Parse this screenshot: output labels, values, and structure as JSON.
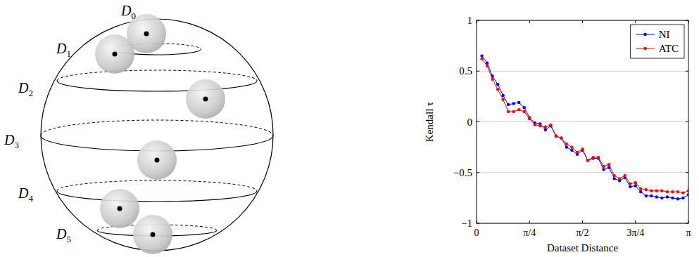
{
  "diagram": {
    "nodes": [
      {
        "symbol": "D",
        "subscript": "0"
      },
      {
        "symbol": "D",
        "subscript": "1"
      },
      {
        "symbol": "D",
        "subscript": "2"
      },
      {
        "symbol": "D",
        "subscript": "3"
      },
      {
        "symbol": "D",
        "subscript": "4"
      },
      {
        "symbol": "D",
        "subscript": "5"
      }
    ]
  },
  "chart_data": {
    "type": "line",
    "x_label": "Dataset Distance",
    "y_label": "Kendall τ",
    "x": [
      0.0785,
      0.1571,
      0.2356,
      0.3142,
      0.3927,
      0.4712,
      0.5498,
      0.6283,
      0.7069,
      0.7854,
      0.8639,
      0.9425,
      1.021,
      1.0996,
      1.1781,
      1.2566,
      1.3352,
      1.4137,
      1.4923,
      1.5708,
      1.6493,
      1.7279,
      1.8064,
      1.885,
      1.9635,
      2.042,
      2.1206,
      2.1991,
      2.2777,
      2.3562,
      2.4347,
      2.5133,
      2.5918,
      2.6704,
      2.7489,
      2.8274,
      2.906,
      2.9845,
      3.0631,
      3.1416
    ],
    "series": [
      {
        "name": "NI",
        "color": "#0000ff",
        "marker": "circle",
        "values": [
          0.65,
          0.58,
          0.45,
          0.37,
          0.26,
          0.17,
          0.18,
          0.19,
          0.14,
          0.04,
          -0.01,
          -0.02,
          -0.08,
          -0.04,
          -0.14,
          -0.16,
          -0.25,
          -0.28,
          -0.32,
          -0.28,
          -0.38,
          -0.36,
          -0.36,
          -0.47,
          -0.45,
          -0.56,
          -0.58,
          -0.55,
          -0.64,
          -0.63,
          -0.69,
          -0.73,
          -0.73,
          -0.74,
          -0.75,
          -0.74,
          -0.75,
          -0.76,
          -0.75,
          -0.72
        ]
      },
      {
        "name": "ATC",
        "color": "#ff0000",
        "marker": "circle",
        "values": [
          0.62,
          0.55,
          0.42,
          0.32,
          0.22,
          0.1,
          0.1,
          0.12,
          0.1,
          0.03,
          -0.03,
          -0.04,
          -0.05,
          -0.03,
          -0.14,
          -0.16,
          -0.22,
          -0.25,
          -0.3,
          -0.27,
          -0.38,
          -0.35,
          -0.35,
          -0.44,
          -0.42,
          -0.53,
          -0.56,
          -0.53,
          -0.61,
          -0.6,
          -0.66,
          -0.67,
          -0.68,
          -0.68,
          -0.68,
          -0.69,
          -0.69,
          -0.69,
          -0.7,
          -0.68
        ]
      }
    ],
    "xlim": [
      0,
      3.1416
    ],
    "xticks": [
      0,
      {
        "value": 0.7854,
        "label": "π/4"
      },
      {
        "value": 1.5708,
        "label": "π/2"
      },
      {
        "value": 2.3562,
        "label": "3π/4"
      },
      {
        "value": 3.1416,
        "label": "π"
      }
    ],
    "ylim": [
      -1,
      1
    ],
    "yticks": [
      {
        "value": -1,
        "label": "−1"
      },
      {
        "value": -0.5,
        "label": "−0.5"
      },
      0,
      0.5,
      1
    ],
    "grid": true,
    "legend": "upper right"
  }
}
